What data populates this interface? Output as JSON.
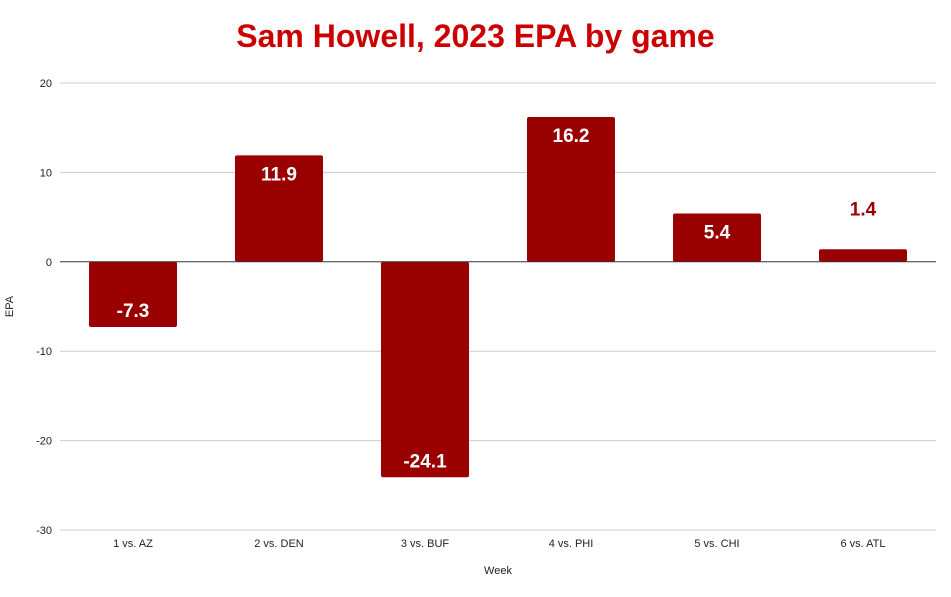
{
  "chart_data": {
    "type": "bar",
    "title": "Sam Howell, 2023 EPA by game",
    "xlabel": "Week",
    "ylabel": "EPA",
    "categories": [
      "1 vs. AZ",
      "2 vs. DEN",
      "3 vs. BUF",
      "4 vs. PHI",
      "5 vs. CHI",
      "6 vs. ATL"
    ],
    "values": [
      -7.3,
      11.9,
      -24.1,
      16.2,
      5.4,
      1.4
    ],
    "value_labels": [
      "-7.3",
      "11.9",
      "-24.1",
      "16.2",
      "5.4",
      "1.4"
    ],
    "ylim": [
      -30,
      20
    ],
    "yticks": [
      20,
      10,
      0,
      -10,
      -20,
      -30
    ],
    "ytick_labels": [
      "20",
      "10",
      "0",
      "-10",
      "-20",
      "-30"
    ],
    "grid": true,
    "legend": "none"
  },
  "colors": {
    "title": "#cc0000",
    "bar": "#990000",
    "label_inside": "#ffffff",
    "label_outside": "#990000",
    "grid": "#cccccc",
    "zero_line": "#333333"
  }
}
